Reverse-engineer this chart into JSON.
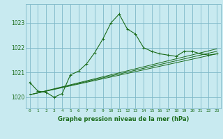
{
  "title": "Graphe pression niveau de la mer (hPa)",
  "bg_color": "#c8eaf0",
  "grid_color": "#7fb8c8",
  "line_color": "#1a6b1a",
  "xlim": [
    -0.5,
    23.5
  ],
  "ylim": [
    1019.55,
    1023.75
  ],
  "yticks": [
    1020,
    1021,
    1022,
    1023
  ],
  "xticks": [
    0,
    1,
    2,
    3,
    4,
    5,
    6,
    7,
    8,
    9,
    10,
    11,
    12,
    13,
    14,
    15,
    16,
    17,
    18,
    19,
    20,
    21,
    22,
    23
  ],
  "series1_x": [
    0,
    1,
    2,
    3,
    4,
    5,
    6,
    7,
    8,
    9,
    10,
    11,
    12,
    13,
    14,
    15,
    16,
    17,
    18,
    19,
    20,
    21,
    22,
    23
  ],
  "series1_y": [
    1020.6,
    1020.25,
    1020.2,
    1020.0,
    1020.15,
    1020.9,
    1021.05,
    1021.35,
    1021.8,
    1022.35,
    1023.0,
    1023.35,
    1022.75,
    1022.55,
    1022.0,
    1021.85,
    1021.75,
    1021.7,
    1021.65,
    1021.85,
    1021.85,
    1021.75,
    1021.7,
    1021.75
  ],
  "series2_x": [
    0,
    23
  ],
  "series2_y": [
    1020.1,
    1021.75
  ],
  "series3_x": [
    0,
    23
  ],
  "series3_y": [
    1020.1,
    1021.85
  ],
  "series4_x": [
    0,
    23
  ],
  "series4_y": [
    1020.1,
    1021.95
  ]
}
